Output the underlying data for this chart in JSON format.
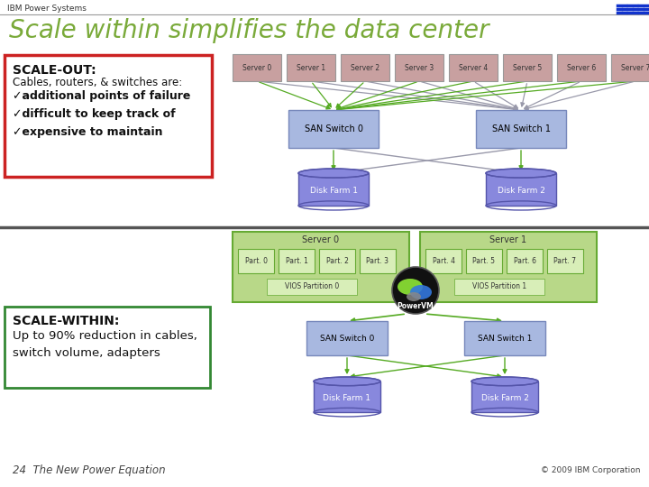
{
  "title": "Scale within simplifies the data center",
  "header_text": "IBM Power Systems",
  "slide_bg": "#ffffff",
  "title_color": "#7aaa3a",
  "header_line_color": "#999999",
  "server_boxes_top": [
    "Server 0",
    "Server 1",
    "Server 2",
    "Server 3",
    "Server 4",
    "Server 5",
    "Server 6",
    "Server 7"
  ],
  "server_box_color": "#c8a0a0",
  "server_box_edge": "#999999",
  "san_switch_color": "#a8b8e0",
  "san_switch_edge": "#7788bb",
  "disk_farm_color": "#7777cc",
  "disk_farm_edge": "#5555aa",
  "scale_out_box_color": "#ffffff",
  "scale_out_box_edge": "#cc2222",
  "scale_out_title": "SCALE-OUT:",
  "scale_out_lines": [
    "Cables, routers, & switches are:",
    "✓additional points of failure",
    "✓difficult to keep track of",
    "✓expensive to maintain"
  ],
  "scale_within_box_color": "#ffffff",
  "scale_within_box_edge": "#338833",
  "scale_within_title": "SCALE-WITHIN:",
  "scale_within_lines": [
    "Up to 90% reduction in cables,",
    "switch volume, adapters"
  ],
  "partition_bg": "#b8d888",
  "partition_edge": "#66aa33",
  "partition_inner_bg": "#d8eeb8",
  "server0_label": "Server 0",
  "server1_label": "Server 1",
  "part0_labels": [
    "Part. 0",
    "Part. 1",
    "Part. 2",
    "Part. 3"
  ],
  "part1_labels": [
    "Part. 4",
    "Part. 5",
    "Part. 6",
    "Part. 7"
  ],
  "vios0_label": "VIOS Partition 0",
  "vios1_label": "VIOS Partition 1",
  "powervm_label": "PowerVM",
  "san0_label": "SAN Switch 0",
  "san1_label": "SAN Switch 1",
  "disk1_label": "Disk Farm 1",
  "disk2_label": "Disk Farm 2",
  "copyright": "© 2009 IBM Corporation",
  "footer_handwriting": "24  The New Power Equation",
  "green_line_color": "#55aa22",
  "gray_line_color": "#9999aa",
  "sep_color": "#555555"
}
